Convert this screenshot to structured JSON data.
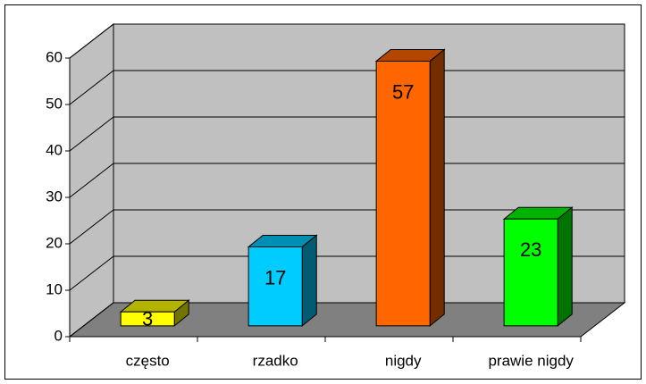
{
  "chart_data": {
    "type": "bar3d",
    "categories": [
      "często",
      "rzadko",
      "nigdy",
      "prawie nigdy"
    ],
    "values": [
      3,
      17,
      57,
      23
    ],
    "colors": [
      "#ffff00",
      "#00ccff",
      "#ff6600",
      "#00ff00"
    ],
    "ylim": [
      0,
      60
    ],
    "yticks": [
      0,
      10,
      20,
      30,
      40,
      50,
      60
    ],
    "grid": true
  }
}
